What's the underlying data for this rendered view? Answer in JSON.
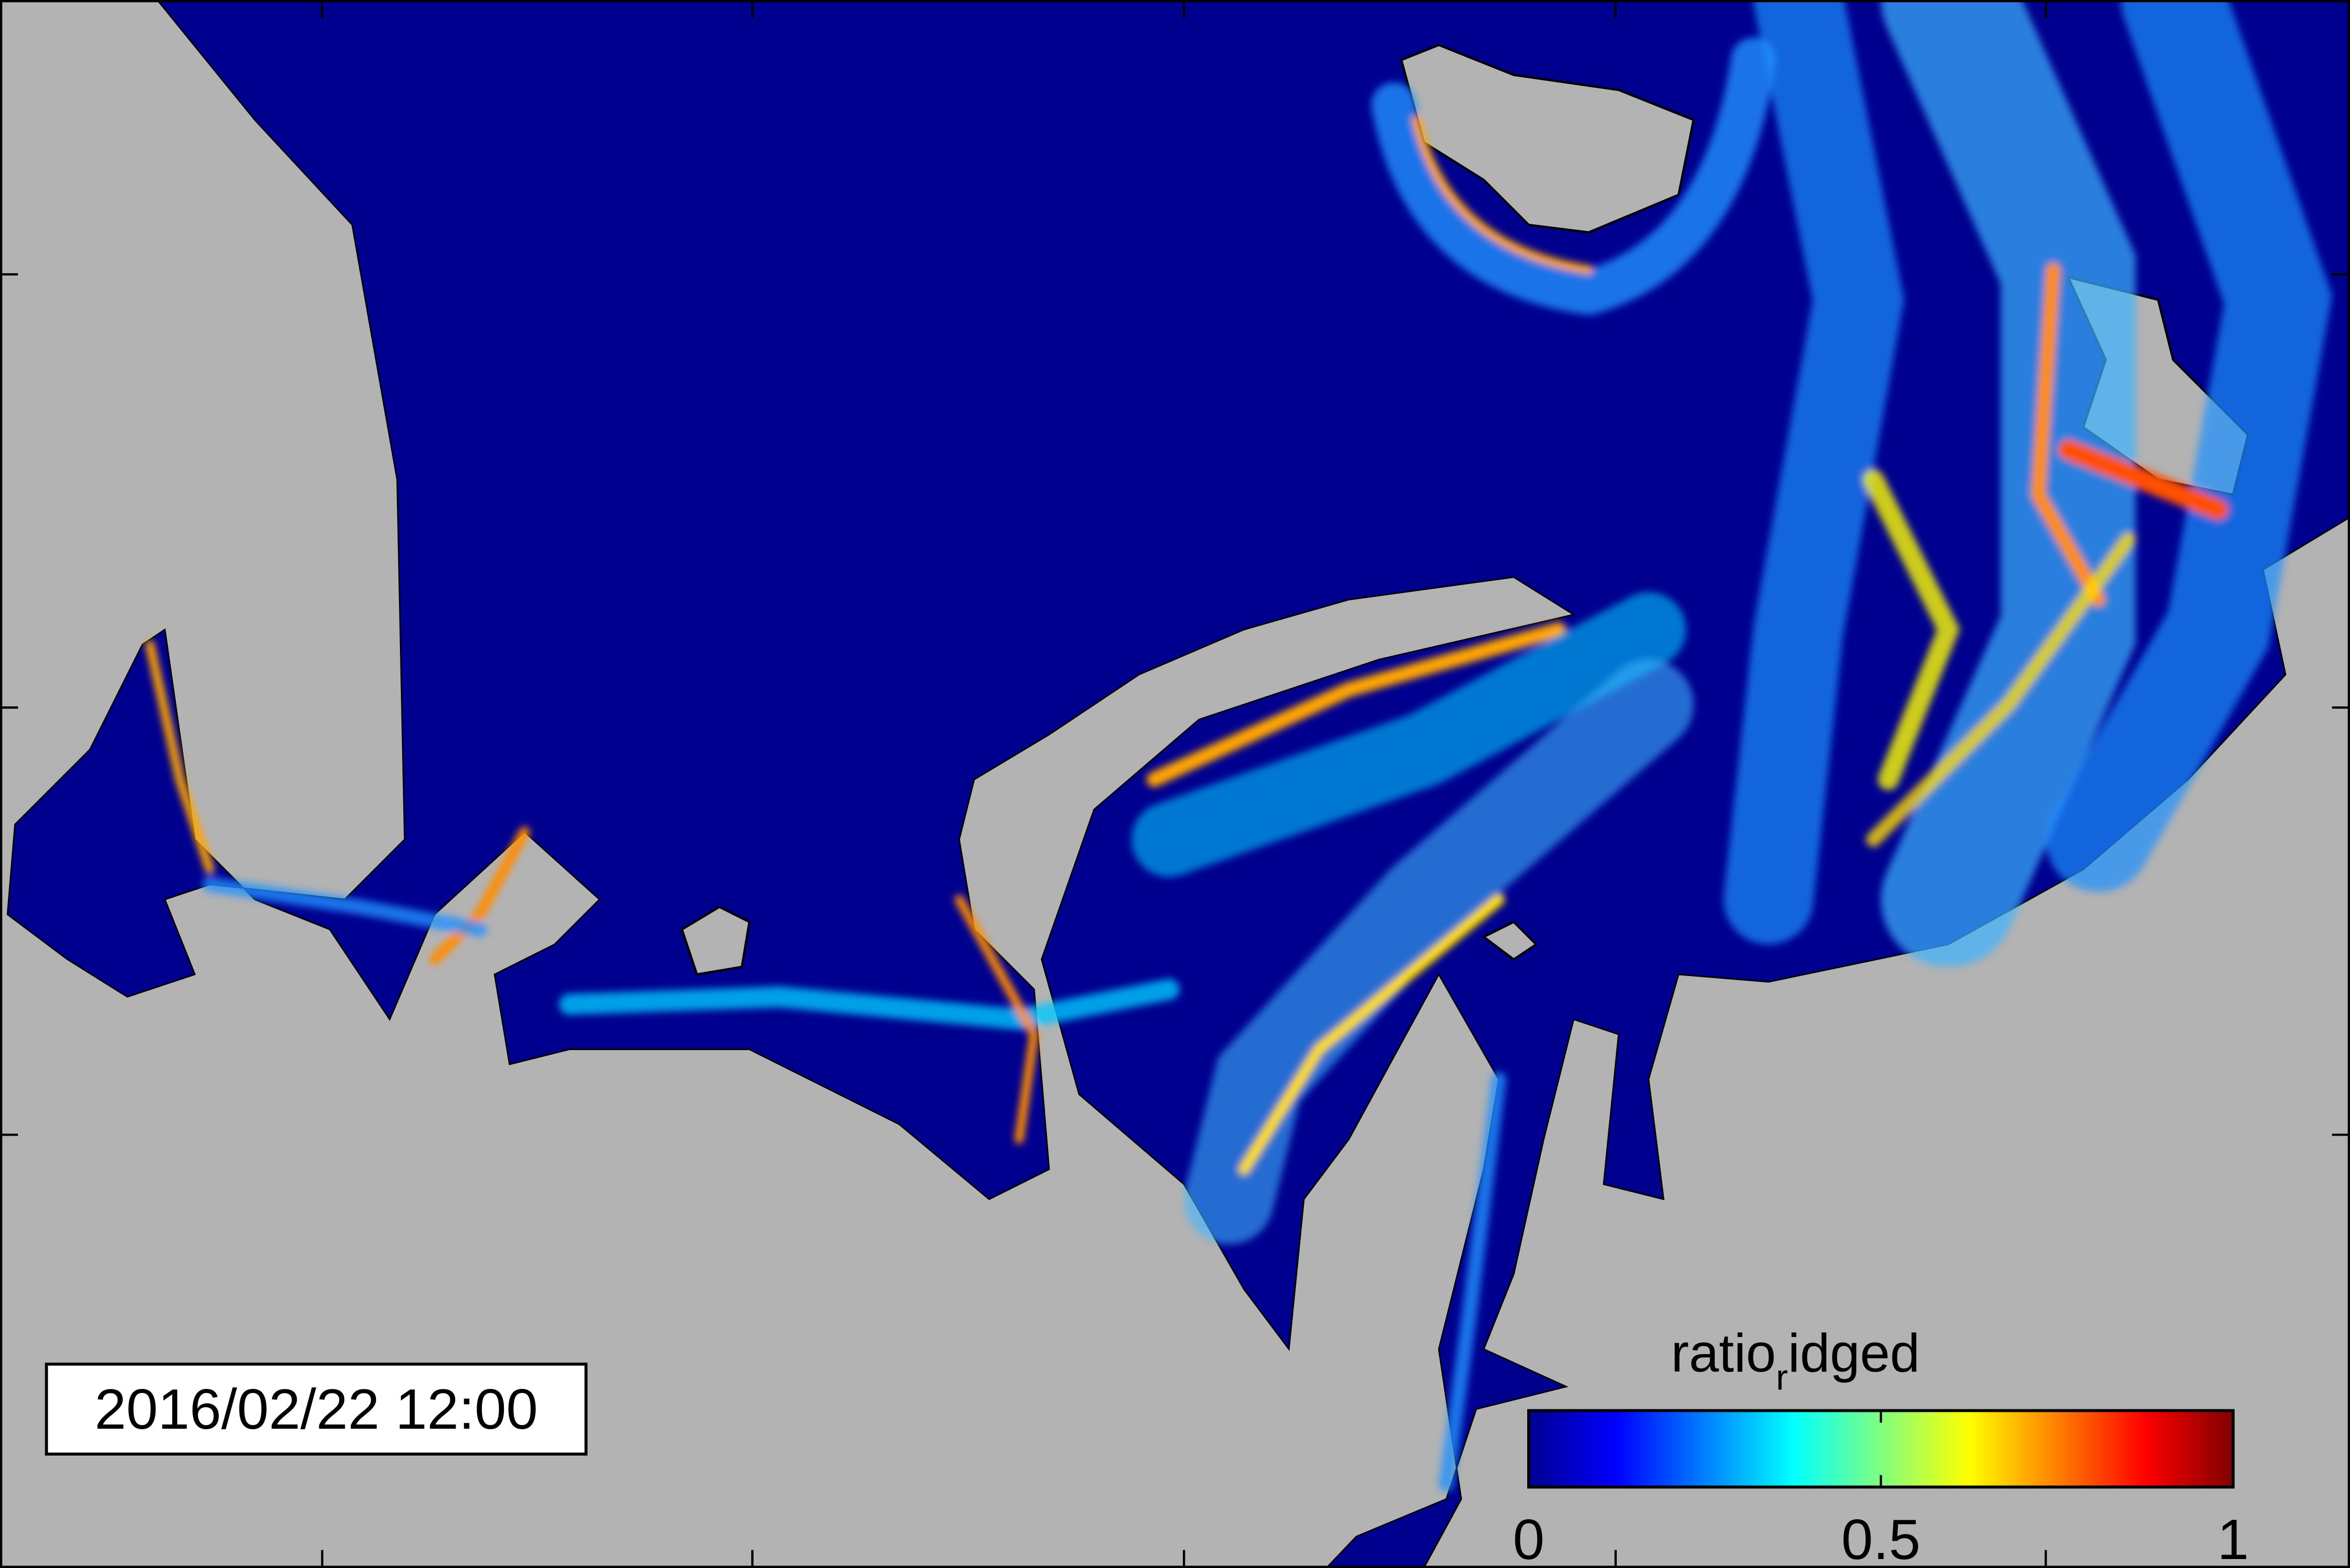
{
  "timestamp": "2016/02/22 12:00",
  "colorbar": {
    "label_parts": [
      "ratio",
      "r",
      "idged"
    ],
    "lim": [
      0,
      1
    ],
    "ticks": [
      0,
      0.5,
      1
    ]
  }
}
